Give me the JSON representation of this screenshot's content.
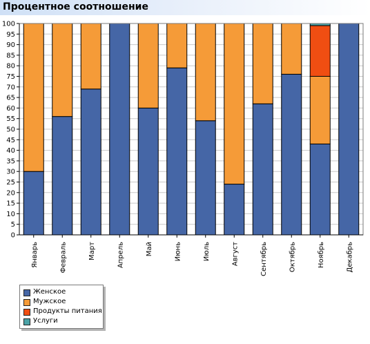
{
  "header": {
    "title": "Процентное соотношение"
  },
  "chart_data": {
    "type": "bar",
    "stacked": true,
    "title": "Процентное соотношение",
    "xlabel": "",
    "ylabel": "",
    "ylim": [
      0,
      100
    ],
    "ytick_step": 5,
    "grid": true,
    "legend_position": "bottom-left",
    "categories": [
      "Январь",
      "Февраль",
      "Март",
      "Апрель",
      "Май",
      "Июнь",
      "Июль",
      "Август",
      "Сентябрь",
      "Октябрь",
      "Ноябрь",
      "Декабрь"
    ],
    "series": [
      {
        "name": "Женское",
        "color": "#4566a6",
        "values": [
          30,
          56,
          69,
          100,
          60,
          79,
          54,
          24,
          62,
          76,
          43,
          100
        ]
      },
      {
        "name": "Мужское",
        "color": "#f59b38",
        "values": [
          70,
          44,
          31,
          0,
          40,
          21,
          46,
          76,
          38,
          24,
          32,
          0
        ]
      },
      {
        "name": "Продукты питания",
        "color": "#f04e12",
        "values": [
          0,
          0,
          0,
          0,
          0,
          0,
          0,
          0,
          0,
          0,
          24,
          0
        ]
      },
      {
        "name": "Услуги",
        "color": "#4aa2a6",
        "values": [
          0,
          0,
          0,
          0,
          0,
          0,
          0,
          0,
          0,
          0,
          1,
          0
        ]
      }
    ]
  }
}
